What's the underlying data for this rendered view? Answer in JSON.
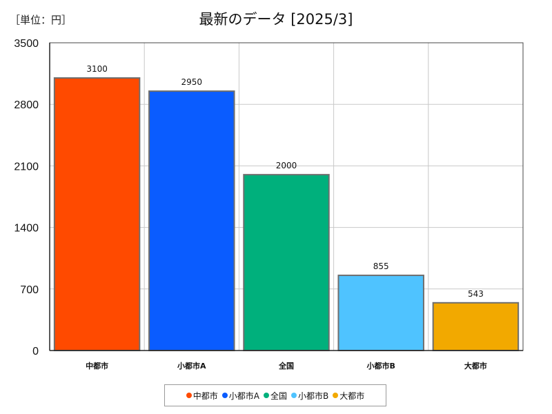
{
  "unit_label": "［単位：円］",
  "chart_data": {
    "type": "bar",
    "title": "最新のデータ [2025/3]",
    "categories": [
      "中都市",
      "小都市A",
      "全国",
      "小都市B",
      "大都市"
    ],
    "values": [
      3100,
      2950,
      2000,
      855,
      543
    ],
    "data_labels": [
      "3100",
      "2950",
      "2000",
      "855",
      "543"
    ],
    "colors": [
      "#ff4a00",
      "#0a5cff",
      "#00b07c",
      "#4fc3ff",
      "#f2a900"
    ],
    "ylim": [
      0,
      3500
    ],
    "yticks": [
      "0",
      "700",
      "1400",
      "2100",
      "2800",
      "3500"
    ],
    "ytick_values": [
      0,
      700,
      1400,
      2100,
      2800,
      3500
    ],
    "xlabel": "",
    "ylabel": "",
    "grid": true,
    "legend_position": "bottom"
  },
  "legend": [
    {
      "label": "中都市",
      "color": "#ff4a00"
    },
    {
      "label": "小都市A",
      "color": "#0a5cff"
    },
    {
      "label": "全国",
      "color": "#00b07c"
    },
    {
      "label": "小都市B",
      "color": "#4fc3ff"
    },
    {
      "label": "大都市",
      "color": "#f2a900"
    }
  ]
}
